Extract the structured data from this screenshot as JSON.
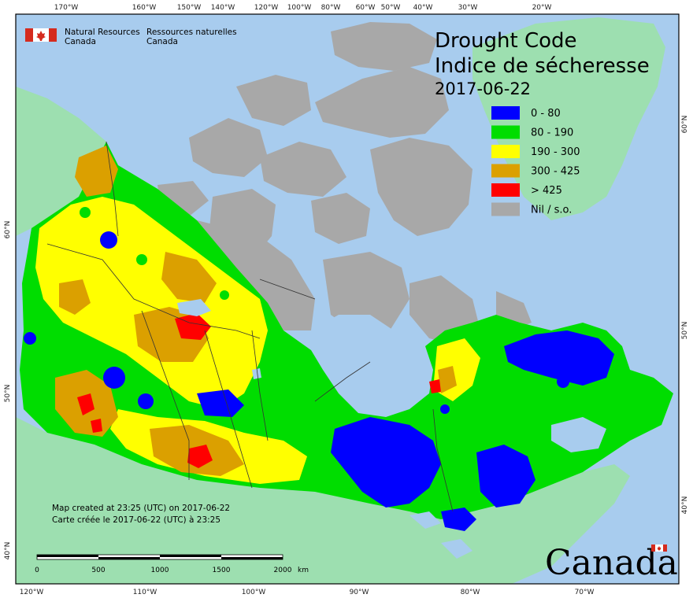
{
  "header": {
    "agency_en_line1": "Natural Resources",
    "agency_en_line2": "Canada",
    "agency_fr_line1": "Ressources naturelles",
    "agency_fr_line2": "Canada"
  },
  "title": {
    "line1": "Drought Code",
    "line2": "Indice de sécheresse",
    "date": "2017-06-22"
  },
  "legend": {
    "items": [
      {
        "label": "0 - 80",
        "color": "#0000ff"
      },
      {
        "label": "80 - 190",
        "color": "#00dd00"
      },
      {
        "label": "190 - 300",
        "color": "#ffff00"
      },
      {
        "label": "300 - 425",
        "color": "#dba000"
      },
      {
        "label": "> 425",
        "color": "#ff0000"
      },
      {
        "label": "Nil / s.o.",
        "color": "#a8a8a8"
      }
    ]
  },
  "colors": {
    "ocean": "#a8ccee",
    "foreign_land": "#9ddfb0",
    "no_data": "#a8a8a8",
    "frame": "#000000"
  },
  "axes": {
    "top_ticks": [
      "170°W",
      "160°W",
      "150°W",
      "140°W",
      "120°W",
      "100°W",
      "80°W",
      "60°W",
      "50°W",
      "40°W",
      "30°W",
      "20°W"
    ],
    "bottom_ticks": [
      "120°W",
      "110°W",
      "100°W",
      "90°W",
      "80°W",
      "70°W"
    ],
    "left_ticks": [
      "60°N",
      "50°N",
      "40°N"
    ],
    "right_ticks": [
      "60°N",
      "50°N",
      "40°N"
    ]
  },
  "scale_bar": {
    "labels": [
      "0",
      "500",
      "1000",
      "1500",
      "2000"
    ],
    "unit": "km"
  },
  "footer": {
    "created_en": "Map created at 23:25 (UTC) on 2017-06-22",
    "created_fr": "Carte créée le 2017-06-22 (UTC) à 23:25"
  },
  "wordmark": {
    "text": "Canada"
  }
}
